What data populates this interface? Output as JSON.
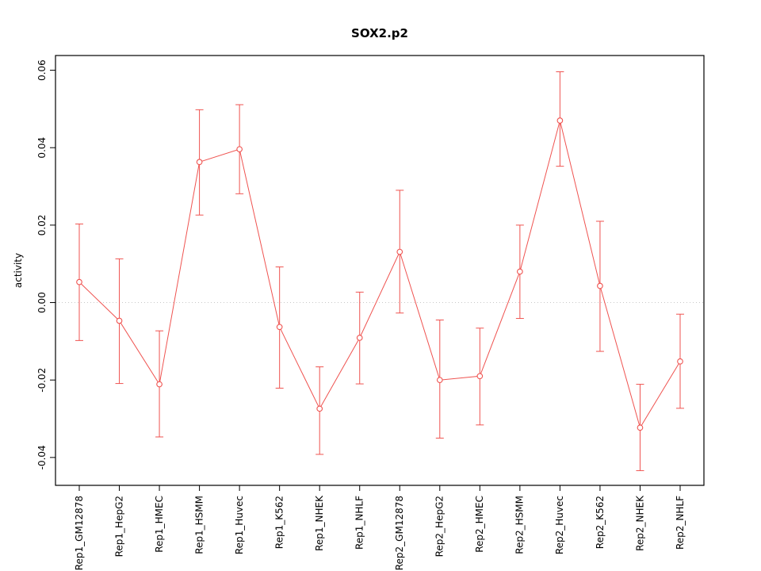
{
  "chart_data": {
    "type": "line",
    "title": "SOX2.p2",
    "xlabel": "",
    "ylabel": "activity",
    "categories": [
      "Rep1_GM12878",
      "Rep1_HepG2",
      "Rep1_HMEC",
      "Rep1_HSMM",
      "Rep1_Huvec",
      "Rep1_K562",
      "Rep1_NHEK",
      "Rep1_NHLF",
      "Rep2_GM12878",
      "Rep2_HepG2",
      "Rep2_HMEC",
      "Rep2_HSMM",
      "Rep2_Huvec",
      "Rep2_K562",
      "Rep2_NHEK",
      "Rep2_NHLF"
    ],
    "series": [
      {
        "name": "activity",
        "values": [
          0.0053,
          -0.0047,
          -0.0211,
          0.0363,
          0.0396,
          -0.0063,
          -0.0274,
          -0.0091,
          0.0131,
          -0.02,
          -0.019,
          0.008,
          0.047,
          0.0043,
          -0.0323,
          -0.0152
        ],
        "ci_high": [
          0.0203,
          0.0113,
          -0.0073,
          0.0498,
          0.0511,
          0.0092,
          -0.0166,
          0.0027,
          0.029,
          -0.0045,
          -0.0066,
          0.02,
          0.0596,
          0.021,
          -0.0211,
          -0.003
        ],
        "ci_low": [
          -0.0098,
          -0.0209,
          -0.0347,
          0.0226,
          0.0281,
          -0.0221,
          -0.0392,
          -0.021,
          -0.0027,
          -0.035,
          -0.0316,
          -0.0041,
          0.0352,
          -0.0126,
          -0.0434,
          -0.0273
        ]
      }
    ],
    "yticks": [
      -0.04,
      -0.02,
      0.0,
      0.02,
      0.04,
      0.06
    ],
    "ylim": [
      -0.0472,
      0.0638
    ],
    "reference_line": 0,
    "series_color": "#ef5350",
    "reference_line_color": "#c8c8c8",
    "axis_color": "#000000",
    "grid": "dotted horizontal line at y=0 only",
    "legend_position": "none",
    "point_style": "open-circle",
    "error_bars": true
  }
}
